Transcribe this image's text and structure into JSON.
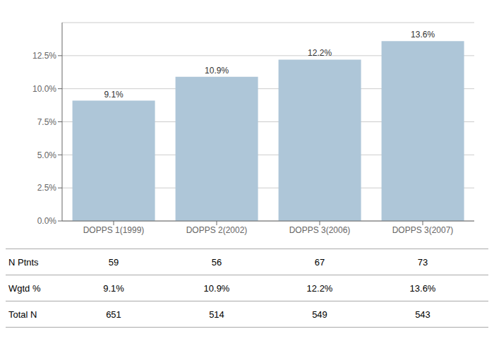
{
  "chart_data": {
    "type": "bar",
    "categories": [
      "DOPPS 1(1999)",
      "DOPPS 2(2002)",
      "DOPPS 3(2006)",
      "DOPPS 3(2007)"
    ],
    "values": [
      9.1,
      10.9,
      12.2,
      13.6
    ],
    "value_labels": [
      "9.1%",
      "10.9%",
      "12.2%",
      "13.6%"
    ],
    "data_labels": true,
    "color": "#aec6d8",
    "ylim": [
      0,
      15.0
    ],
    "yticks": [
      {
        "value": 0.0,
        "label": "0.0%"
      },
      {
        "value": 2.5,
        "label": "2.5%"
      },
      {
        "value": 5.0,
        "label": "5.0%"
      },
      {
        "value": 7.5,
        "label": "7.5%"
      },
      {
        "value": 10.0,
        "label": "10.0%"
      },
      {
        "value": 12.5,
        "label": "12.5%"
      }
    ],
    "grid": true,
    "table": [
      {
        "name": "N Ptnts",
        "values": [
          59,
          56,
          67,
          73
        ]
      },
      {
        "name": "Wgtd %",
        "values": [
          9.1,
          10.9,
          12.2,
          13.6
        ],
        "value_labels": [
          "9.1%",
          "10.9%",
          "12.2%",
          "13.6%"
        ]
      },
      {
        "name": "Total N",
        "values": [
          651,
          514,
          549,
          543
        ]
      }
    ]
  }
}
